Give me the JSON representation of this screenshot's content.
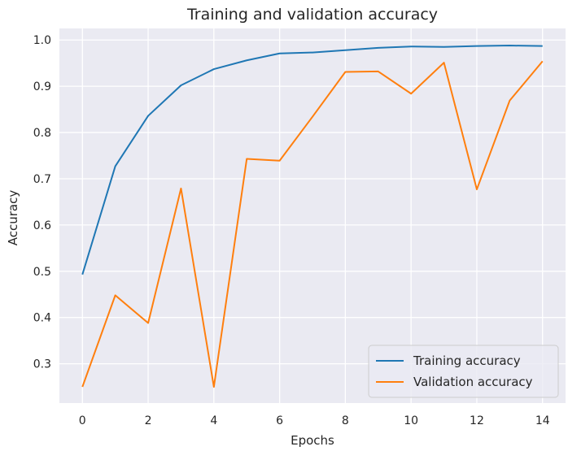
{
  "chart_data": {
    "type": "line",
    "title": "Training and validation accuracy",
    "xlabel": "Epochs",
    "ylabel": "Accuracy",
    "x": [
      0,
      1,
      2,
      3,
      4,
      5,
      6,
      7,
      8,
      9,
      10,
      11,
      12,
      13,
      14
    ],
    "xlim": [
      -0.7,
      14.7
    ],
    "ylim": [
      0.215,
      1.025
    ],
    "xticks": [
      "0",
      "2",
      "4",
      "6",
      "8",
      "10",
      "12",
      "14"
    ],
    "xtick_values": [
      0,
      2,
      4,
      6,
      8,
      10,
      12,
      14
    ],
    "yticks": [
      "0.3",
      "0.4",
      "0.5",
      "0.6",
      "0.7",
      "0.8",
      "0.9",
      "1.0"
    ],
    "ytick_values": [
      0.3,
      0.4,
      0.5,
      0.6,
      0.7,
      0.8,
      0.9,
      1.0
    ],
    "grid": true,
    "legend_position": "bottom-right",
    "background_color": "#eaeaf2",
    "grid_color": "#ffffff",
    "series": [
      {
        "name": "Training accuracy",
        "color": "#1f77b4",
        "values": [
          0.493,
          0.727,
          0.836,
          0.902,
          0.937,
          0.956,
          0.971,
          0.973,
          0.978,
          0.983,
          0.986,
          0.985,
          0.987,
          0.988,
          0.987
        ]
      },
      {
        "name": "Validation accuracy",
        "color": "#ff7f0e",
        "values": [
          0.25,
          0.448,
          0.388,
          0.679,
          0.25,
          0.743,
          0.739,
          0.834,
          0.931,
          0.932,
          0.884,
          0.951,
          0.677,
          0.869,
          0.954
        ]
      }
    ]
  }
}
